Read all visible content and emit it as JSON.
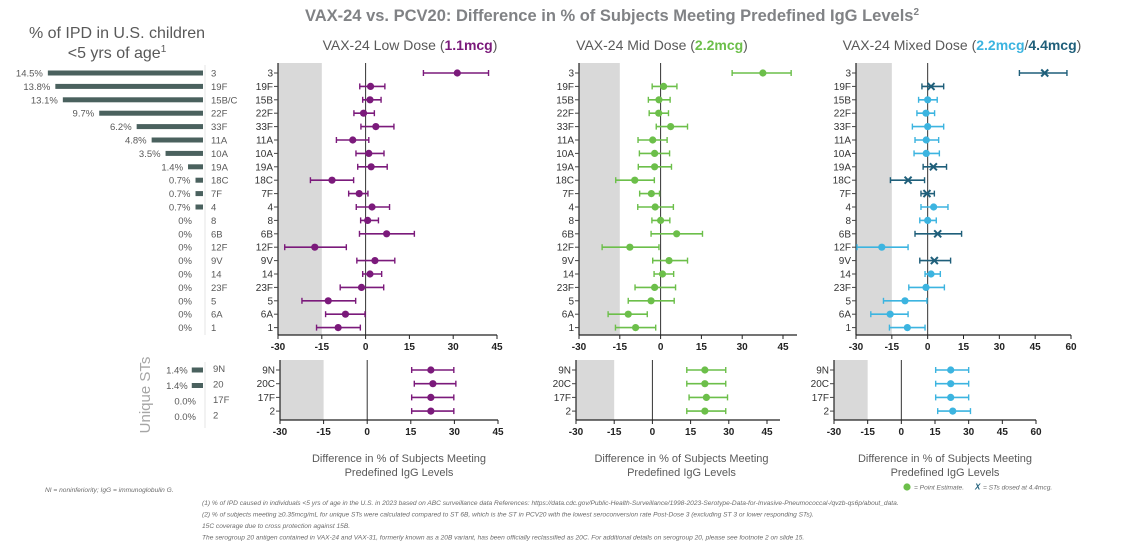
{
  "title": {
    "text": "VAX-24 vs. PCV20: Difference in % of Subjects Meeting Predefined IgG Levels",
    "sup": "2",
    "color": "#808285"
  },
  "ipd": {
    "title_line1": "% of IPD in U.S. children",
    "title_line2": "<5 yrs of age",
    "title_sup": "1",
    "bar_color": "#4a615e",
    "rows": [
      {
        "st": "3",
        "label": "14.5%",
        "value": 14.5
      },
      {
        "st": "19F",
        "label": "13.8%",
        "value": 13.8
      },
      {
        "st": "15B/C",
        "label": "13.1%",
        "value": 13.1
      },
      {
        "st": "22F",
        "label": "9.7%",
        "value": 9.7
      },
      {
        "st": "33F",
        "label": "6.2%",
        "value": 6.2
      },
      {
        "st": "11A",
        "label": "4.8%",
        "value": 4.8
      },
      {
        "st": "10A",
        "label": "3.5%",
        "value": 3.5
      },
      {
        "st": "19A",
        "label": "1.4%",
        "value": 1.4
      },
      {
        "st": "18C",
        "label": "0.7%",
        "value": 0.7
      },
      {
        "st": "7F",
        "label": "0.7%",
        "value": 0.7
      },
      {
        "st": "4",
        "label": "0.7%",
        "value": 0.7
      },
      {
        "st": "8",
        "label": "0%",
        "value": 0
      },
      {
        "st": "6B",
        "label": "0%",
        "value": 0
      },
      {
        "st": "12F",
        "label": "0%",
        "value": 0
      },
      {
        "st": "9V",
        "label": "0%",
        "value": 0
      },
      {
        "st": "14",
        "label": "0%",
        "value": 0
      },
      {
        "st": "23F",
        "label": "0%",
        "value": 0
      },
      {
        "st": "5",
        "label": "0%",
        "value": 0
      },
      {
        "st": "6A",
        "label": "0%",
        "value": 0
      },
      {
        "st": "1",
        "label": "0%",
        "value": 0
      }
    ],
    "unique_label": "Unique STs",
    "unique_rows": [
      {
        "st": "9N",
        "label": "1.4%",
        "value": 1.4
      },
      {
        "st": "20",
        "label": "1.4%",
        "value": 1.4
      },
      {
        "st": "17F",
        "label": "0.0%",
        "value": 0
      },
      {
        "st": "2",
        "label": "0.0%",
        "value": 0
      }
    ]
  },
  "chart_data": [
    {
      "type": "forest",
      "title_prefix": "VAX-24 Low Dose (",
      "title_doses": [
        {
          "text": "1.1mcg",
          "color": "#7b1a7b"
        }
      ],
      "title_suffix": ")",
      "color": "#7b1a7b",
      "xticks": [
        -30,
        -15,
        0,
        15,
        30,
        45
      ],
      "xlim": [
        -30,
        45
      ],
      "ni_region": [
        -30,
        -15
      ],
      "xlabel_line1": "Difference in % of Subjects Meeting",
      "xlabel_line2": "Predefined IgG Levels",
      "rows": [
        {
          "st": "3",
          "est": 31.4,
          "lo": 19.8,
          "hi": 42.1,
          "marker": "dot"
        },
        {
          "st": "19F",
          "est": 1.7,
          "lo": -2.0,
          "hi": 6.6,
          "marker": "dot"
        },
        {
          "st": "15B",
          "est": 1.5,
          "lo": -1.0,
          "hi": 5.3,
          "marker": "dot"
        },
        {
          "st": "22F",
          "est": -0.7,
          "lo": -4.0,
          "hi": 3.0,
          "marker": "dot"
        },
        {
          "st": "33F",
          "est": 3.5,
          "lo": -1.6,
          "hi": 9.7,
          "marker": "dot"
        },
        {
          "st": "11A",
          "est": -4.4,
          "lo": -10.0,
          "hi": 1.1,
          "marker": "dot"
        },
        {
          "st": "10A",
          "est": 1.1,
          "lo": -3.3,
          "hi": 6.3,
          "marker": "dot"
        },
        {
          "st": "19A",
          "est": 1.9,
          "lo": -2.7,
          "hi": 7.4,
          "marker": "dot"
        },
        {
          "st": "18C",
          "est": -11.5,
          "lo": -18.9,
          "hi": -4.1,
          "marker": "dot"
        },
        {
          "st": "7F",
          "est": -2.2,
          "lo": -5.8,
          "hi": 0.8,
          "marker": "dot"
        },
        {
          "st": "4",
          "est": 2.2,
          "lo": -3.2,
          "hi": 8.2,
          "marker": "dot"
        },
        {
          "st": "8",
          "est": 0.7,
          "lo": -1.7,
          "hi": 4.4,
          "marker": "dot"
        },
        {
          "st": "6B",
          "est": 7.2,
          "lo": -2.1,
          "hi": 16.7,
          "marker": "dot"
        },
        {
          "st": "12F",
          "est": -17.4,
          "lo": -27.7,
          "hi": -6.6,
          "marker": "dot"
        },
        {
          "st": "9V",
          "est": 3.2,
          "lo": -3.0,
          "hi": 10.0,
          "marker": "dot"
        },
        {
          "st": "14",
          "est": 1.5,
          "lo": -1.0,
          "hi": 5.5,
          "marker": "dot"
        },
        {
          "st": "23F",
          "est": -1.4,
          "lo": -8.7,
          "hi": 6.2,
          "marker": "dot"
        },
        {
          "st": "5",
          "est": -12.8,
          "lo": -21.8,
          "hi": -3.4,
          "marker": "dot"
        },
        {
          "st": "6A",
          "est": -6.9,
          "lo": -13.7,
          "hi": -0.2,
          "marker": "dot"
        },
        {
          "st": "1",
          "est": -9.4,
          "lo": -16.8,
          "hi": -1.8,
          "marker": "dot"
        }
      ],
      "unique_rows": [
        {
          "st": "9N",
          "est": 21.9,
          "lo": 15.3,
          "hi": 29.8,
          "marker": "dot"
        },
        {
          "st": "20C",
          "est": 22.6,
          "lo": 16.2,
          "hi": 30.5,
          "marker": "dot"
        },
        {
          "st": "17F",
          "est": 21.9,
          "lo": 15.3,
          "hi": 29.8,
          "marker": "dot"
        },
        {
          "st": "2",
          "est": 21.9,
          "lo": 15.3,
          "hi": 29.8,
          "marker": "dot"
        }
      ]
    },
    {
      "type": "forest",
      "title_prefix": "VAX-24 Mid Dose (",
      "title_doses": [
        {
          "text": "2.2mcg",
          "color": "#6cbf4a"
        }
      ],
      "title_suffix": ")",
      "color": "#6cbf4a",
      "xticks": [
        -30,
        -15,
        0,
        15,
        30,
        45
      ],
      "xlim": [
        -30,
        50
      ],
      "ni_region": [
        -30,
        -15
      ],
      "xlabel_line1": "Difference in % of Subjects Meeting",
      "xlabel_line2": "Predefined IgG Levels",
      "rows": [
        {
          "st": "3",
          "est": 37.6,
          "lo": 26.3,
          "hi": 48.0,
          "marker": "dot"
        },
        {
          "st": "19F",
          "est": 1.1,
          "lo": -3.1,
          "hi": 6.0,
          "marker": "dot"
        },
        {
          "st": "15B",
          "est": -0.6,
          "lo": -4.5,
          "hi": 3.5,
          "marker": "dot"
        },
        {
          "st": "22F",
          "est": -0.7,
          "lo": -4.2,
          "hi": 2.9,
          "marker": "dot"
        },
        {
          "st": "33F",
          "est": 3.7,
          "lo": -1.6,
          "hi": 9.9,
          "marker": "dot"
        },
        {
          "st": "11A",
          "est": -2.9,
          "lo": -8.3,
          "hi": 2.4,
          "marker": "dot"
        },
        {
          "st": "10A",
          "est": -2.2,
          "lo": -7.8,
          "hi": 3.3,
          "marker": "dot"
        },
        {
          "st": "19A",
          "est": -2.2,
          "lo": -8.2,
          "hi": 4.0,
          "marker": "dot"
        },
        {
          "st": "18C",
          "est": -9.5,
          "lo": -16.5,
          "hi": -2.3,
          "marker": "dot"
        },
        {
          "st": "7F",
          "est": -3.4,
          "lo": -7.7,
          "hi": -0.4,
          "marker": "dot"
        },
        {
          "st": "4",
          "est": -2.0,
          "lo": -8.4,
          "hi": 4.7,
          "marker": "dot"
        },
        {
          "st": "8",
          "est": 0.0,
          "lo": -3.2,
          "hi": 3.4,
          "marker": "dot"
        },
        {
          "st": "6B",
          "est": 5.9,
          "lo": -3.5,
          "hi": 15.4,
          "marker": "dot"
        },
        {
          "st": "12F",
          "est": -11.3,
          "lo": -21.5,
          "hi": -0.6,
          "marker": "dot"
        },
        {
          "st": "9V",
          "est": 3.1,
          "lo": -2.9,
          "hi": 9.9,
          "marker": "dot"
        },
        {
          "st": "14",
          "est": 0.7,
          "lo": -2.4,
          "hi": 4.8,
          "marker": "dot"
        },
        {
          "st": "23F",
          "est": -2.2,
          "lo": -9.4,
          "hi": 5.5,
          "marker": "dot"
        },
        {
          "st": "5",
          "est": -3.5,
          "lo": -11.9,
          "hi": 5.0,
          "marker": "dot"
        },
        {
          "st": "6A",
          "est": -11.9,
          "lo": -19.3,
          "hi": -4.9,
          "marker": "dot"
        },
        {
          "st": "1",
          "est": -9.2,
          "lo": -16.6,
          "hi": -1.8,
          "marker": "dot"
        }
      ],
      "unique_rows": [
        {
          "st": "9N",
          "est": 20.6,
          "lo": 13.5,
          "hi": 28.8,
          "marker": "dot"
        },
        {
          "st": "20C",
          "est": 20.6,
          "lo": 13.5,
          "hi": 28.8,
          "marker": "dot"
        },
        {
          "st": "17F",
          "est": 21.2,
          "lo": 14.4,
          "hi": 29.5,
          "marker": "dot"
        },
        {
          "st": "2",
          "est": 20.6,
          "lo": 13.5,
          "hi": 28.8,
          "marker": "dot"
        }
      ]
    },
    {
      "type": "forest",
      "title_prefix": "VAX-24 Mixed Dose (",
      "title_doses": [
        {
          "text": "2.2mcg",
          "color": "#3cb4e0"
        },
        {
          "text": "/",
          "color": "#595959"
        },
        {
          "text": "4.4mcg",
          "color": "#1f5f7a"
        }
      ],
      "title_suffix": ")",
      "color": "#3cb4e0",
      "x_color": "#1f5f7a",
      "xticks": [
        -30,
        -15,
        0,
        15,
        30,
        45,
        60
      ],
      "xlim": [
        -30,
        60
      ],
      "ni_region": [
        -30,
        -15
      ],
      "xlabel_line1": "Difference in % of Subjects Meeting",
      "xlabel_line2": "Predefined IgG Levels",
      "rows": [
        {
          "st": "3",
          "est": 49.0,
          "lo": 38.4,
          "hi": 58.3,
          "marker": "x"
        },
        {
          "st": "19F",
          "est": 1.4,
          "lo": -2.4,
          "hi": 6.7,
          "marker": "x"
        },
        {
          "st": "15B",
          "est": 0.0,
          "lo": -3.8,
          "hi": 4.0,
          "marker": "dot"
        },
        {
          "st": "22F",
          "est": -0.7,
          "lo": -4.5,
          "hi": 2.9,
          "marker": "dot"
        },
        {
          "st": "33F",
          "est": 0.0,
          "lo": -6.4,
          "hi": 6.7,
          "marker": "dot"
        },
        {
          "st": "11A",
          "est": -0.6,
          "lo": -5.3,
          "hi": 4.6,
          "marker": "dot"
        },
        {
          "st": "10A",
          "est": -0.6,
          "lo": -5.7,
          "hi": 4.9,
          "marker": "dot"
        },
        {
          "st": "19A",
          "est": 2.4,
          "lo": -1.9,
          "hi": 7.9,
          "marker": "x"
        },
        {
          "st": "18C",
          "est": -8.2,
          "lo": -15.6,
          "hi": -1.3,
          "marker": "x"
        },
        {
          "st": "7F",
          "est": -0.3,
          "lo": -2.8,
          "hi": 2.8,
          "marker": "x"
        },
        {
          "st": "4",
          "est": 2.5,
          "lo": -2.8,
          "hi": 8.5,
          "marker": "dot"
        },
        {
          "st": "8",
          "est": 0.0,
          "lo": -3.3,
          "hi": 3.6,
          "marker": "dot"
        },
        {
          "st": "6B",
          "est": 4.2,
          "lo": -5.3,
          "hi": 14.2,
          "marker": "x"
        },
        {
          "st": "12F",
          "est": -19.2,
          "lo": -29.6,
          "hi": -8.2,
          "marker": "dot"
        },
        {
          "st": "9V",
          "est": 2.8,
          "lo": -3.3,
          "hi": 9.6,
          "marker": "x"
        },
        {
          "st": "14",
          "est": 1.4,
          "lo": -1.1,
          "hi": 5.3,
          "marker": "dot"
        },
        {
          "st": "23F",
          "est": -0.7,
          "lo": -7.9,
          "hi": 7.0,
          "marker": "dot"
        },
        {
          "st": "5",
          "est": -9.5,
          "lo": -18.5,
          "hi": -0.3,
          "marker": "dot"
        },
        {
          "st": "6A",
          "est": -15.7,
          "lo": -23.8,
          "hi": -8.2,
          "marker": "dot"
        },
        {
          "st": "1",
          "est": -8.5,
          "lo": -16.0,
          "hi": -1.1,
          "marker": "dot"
        }
      ],
      "unique_rows": [
        {
          "st": "9N",
          "est": 22.0,
          "lo": 15.3,
          "hi": 30.0,
          "marker": "dot"
        },
        {
          "st": "20C",
          "est": 22.0,
          "lo": 15.3,
          "hi": 30.0,
          "marker": "dot"
        },
        {
          "st": "17F",
          "est": 22.0,
          "lo": 15.3,
          "hi": 30.0,
          "marker": "dot"
        },
        {
          "st": "2",
          "est": 22.9,
          "lo": 16.2,
          "hi": 30.8,
          "marker": "dot"
        }
      ]
    }
  ],
  "legend": {
    "point_label": "= Point Estimate.",
    "point_color": "#6cbf4a",
    "x_symbol": "X",
    "x_label": "= STs dosed at 4.4mcg.",
    "x_color": "#1f5f7a"
  },
  "abbreviations": "NI = noninferiority; IgG = immunoglobulin G.",
  "footnotes": [
    "(1) % of IPD caused in individuals <5 yrs of age in the U.S. in 2023 based on ABC surveillance data References: https://data.cdc.gov/Public-Health-Surveillance/1998-2023-Serotype-Data-for-Invasive-Pneumococcal-/qvzb-qs6p/about_data.",
    "(2) % of subjects meeting ≥0.35mcg/mL for unique STs were calculated compared to ST 6B, which is the ST in PCV20 with the lowest seroconversion rate Post-Dose 3 (excluding ST 3 or lower responding STs).",
    "15C coverage due to cross protection against 15B.",
    "The serogroup 20 antigen contained in VAX-24 and VAX-31, formerly known as a 20B variant, has been officially reclassified as 20C. For additional details on serogroup 20, please see footnote 2 on slide 15."
  ]
}
